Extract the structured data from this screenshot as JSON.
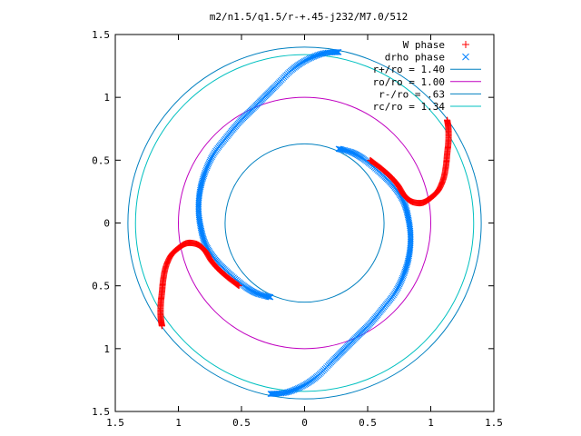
{
  "chart_data": {
    "type": "scatter",
    "title": "m2/n1.5/q1.5/r-+.45-j232/M7.0/512",
    "xlim": [
      -1.5,
      1.5
    ],
    "ylim": [
      -1.5,
      1.5
    ],
    "x_ticks": [
      {
        "value": -1.5,
        "label": "1.5"
      },
      {
        "value": -1.0,
        "label": "1"
      },
      {
        "value": -0.5,
        "label": "0.5"
      },
      {
        "value": 0,
        "label": "0"
      },
      {
        "value": 0.5,
        "label": "0.5"
      },
      {
        "value": 1.0,
        "label": "1"
      },
      {
        "value": 1.5,
        "label": "1.5"
      }
    ],
    "y_ticks": [
      {
        "value": 1.5,
        "label": "1.5"
      },
      {
        "value": 1.0,
        "label": "1"
      },
      {
        "value": 0.5,
        "label": "0.5"
      },
      {
        "value": 0,
        "label": "0"
      },
      {
        "value": -0.5,
        "label": "0.5"
      },
      {
        "value": -1.0,
        "label": "1"
      },
      {
        "value": -1.5,
        "label": "1.5"
      }
    ],
    "grid": false,
    "legend_position": "top-right",
    "series": [
      {
        "name": "W phase",
        "kind": "points",
        "marker": "plus",
        "color": "#ff0000",
        "arms": [
          [
            [
              1.13,
              0.82
            ],
            [
              1.14,
              0.75
            ],
            [
              1.14,
              0.65
            ],
            [
              1.13,
              0.55
            ],
            [
              1.12,
              0.45
            ],
            [
              1.1,
              0.35
            ],
            [
              1.06,
              0.26
            ],
            [
              1.0,
              0.2
            ],
            [
              0.93,
              0.16
            ],
            [
              0.85,
              0.17
            ],
            [
              0.79,
              0.22
            ],
            [
              0.74,
              0.3
            ],
            [
              0.68,
              0.37
            ],
            [
              0.6,
              0.44
            ],
            [
              0.52,
              0.5
            ]
          ],
          [
            [
              -1.13,
              -0.82
            ],
            [
              -1.14,
              -0.75
            ],
            [
              -1.14,
              -0.65
            ],
            [
              -1.13,
              -0.55
            ],
            [
              -1.12,
              -0.45
            ],
            [
              -1.1,
              -0.35
            ],
            [
              -1.06,
              -0.26
            ],
            [
              -1.0,
              -0.2
            ],
            [
              -0.93,
              -0.16
            ],
            [
              -0.85,
              -0.17
            ],
            [
              -0.79,
              -0.22
            ],
            [
              -0.74,
              -0.3
            ],
            [
              -0.68,
              -0.37
            ],
            [
              -0.6,
              -0.44
            ],
            [
              -0.52,
              -0.5
            ]
          ]
        ]
      },
      {
        "name": "drho phase",
        "kind": "points",
        "marker": "cross",
        "color": "#0080ff",
        "arms": [
          [
            [
              0.27,
              1.36
            ],
            [
              0.15,
              1.35
            ],
            [
              0.02,
              1.3
            ],
            [
              -0.1,
              1.22
            ],
            [
              -0.22,
              1.1
            ],
            [
              -0.32,
              1.0
            ],
            [
              -0.42,
              0.9
            ],
            [
              -0.52,
              0.8
            ],
            [
              -0.62,
              0.68
            ],
            [
              -0.72,
              0.55
            ],
            [
              -0.79,
              0.4
            ],
            [
              -0.83,
              0.25
            ],
            [
              -0.84,
              0.1
            ],
            [
              -0.82,
              -0.05
            ],
            [
              -0.78,
              -0.18
            ],
            [
              -0.7,
              -0.3
            ],
            [
              -0.6,
              -0.4
            ],
            [
              -0.48,
              -0.5
            ],
            [
              -0.38,
              -0.56
            ],
            [
              -0.27,
              -0.59
            ]
          ],
          [
            [
              -0.27,
              -1.36
            ],
            [
              -0.15,
              -1.35
            ],
            [
              -0.02,
              -1.3
            ],
            [
              0.1,
              -1.22
            ],
            [
              0.22,
              -1.1
            ],
            [
              0.32,
              -1.0
            ],
            [
              0.42,
              -0.9
            ],
            [
              0.52,
              -0.8
            ],
            [
              0.62,
              -0.68
            ],
            [
              0.72,
              -0.55
            ],
            [
              0.79,
              -0.4
            ],
            [
              0.83,
              -0.25
            ],
            [
              0.84,
              -0.1
            ],
            [
              0.82,
              0.05
            ],
            [
              0.78,
              0.18
            ],
            [
              0.7,
              0.3
            ],
            [
              0.6,
              0.4
            ],
            [
              0.48,
              0.5
            ],
            [
              0.38,
              0.56
            ],
            [
              0.27,
              0.59
            ]
          ]
        ]
      },
      {
        "name": "r+/ro = 1.40",
        "kind": "circle",
        "radius": 1.4,
        "color": "#0080c0"
      },
      {
        "name": "ro/ro = 1.00",
        "kind": "circle",
        "radius": 1.0,
        "color": "#c000c0"
      },
      {
        "name": "r-/ro = .63",
        "kind": "circle",
        "radius": 0.63,
        "color": "#0080c0"
      },
      {
        "name": "rc/ro = 1.34",
        "kind": "circle",
        "radius": 1.34,
        "color": "#00c0c0"
      }
    ]
  }
}
